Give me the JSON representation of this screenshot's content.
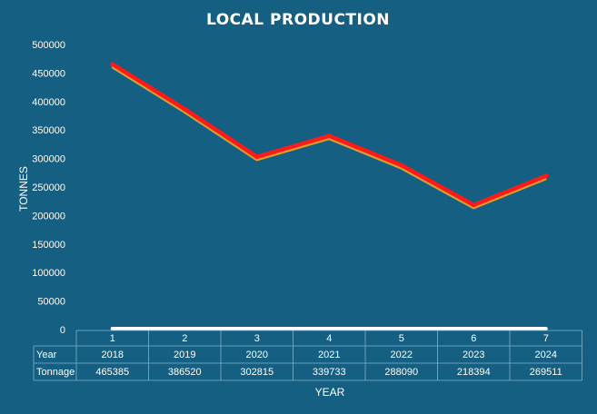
{
  "chart_data": {
    "type": "line",
    "title": "LOCAL PRODUCTION",
    "xlabel": "YEAR",
    "ylabel": "TONNES",
    "x": [
      "1",
      "2",
      "3",
      "4",
      "5",
      "6",
      "7"
    ],
    "ylim": [
      0,
      500000
    ],
    "yticks": [
      "0",
      "50000",
      "100000",
      "150000",
      "200000",
      "250000",
      "300000",
      "350000",
      "400000",
      "450000",
      "500000"
    ],
    "series": [
      {
        "name": "Tonnage",
        "values": [
          465385,
          386520,
          302815,
          339733,
          288090,
          218394,
          269511
        ]
      }
    ],
    "table": {
      "row_labels": [
        "Year",
        "Tonnage"
      ],
      "year_row": [
        "2018",
        "2019",
        "2020",
        "2021",
        "2022",
        "2023",
        "2024"
      ],
      "tonnage_row": [
        "465385",
        "386520",
        "302815",
        "339733",
        "288090",
        "218394",
        "269511"
      ]
    },
    "colors": {
      "background": "#155f82",
      "line": "#ff1a1a",
      "line_shadow": "#f5a623",
      "drop_lines": "#ffffff",
      "table_border": "#7fb3cc"
    },
    "grid": false,
    "legend": "none"
  }
}
